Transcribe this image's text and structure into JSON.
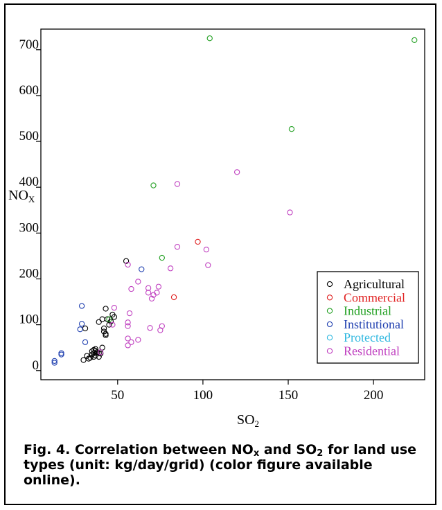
{
  "chart_data": {
    "type": "scatter",
    "xlabel": "SO",
    "xlabel_sub": "2",
    "ylabel": "NO",
    "ylabel_sub": "X",
    "xlim": [
      5,
      230
    ],
    "ylim": [
      -20,
      745
    ],
    "x_ticks": [
      {
        "value": 50,
        "label": "50"
      },
      {
        "value": 100,
        "label": "100"
      },
      {
        "value": 150,
        "label": "150"
      },
      {
        "value": 200,
        "label": "200"
      }
    ],
    "y_ticks": [
      {
        "value": 0,
        "label": "0"
      },
      {
        "value": 100,
        "label": "100"
      },
      {
        "value": 200,
        "label": "200"
      },
      {
        "value": 300,
        "label": "300"
      },
      {
        "value": 400,
        "label": "400"
      },
      {
        "value": 500,
        "label": "500"
      },
      {
        "value": 600,
        "label": "600"
      },
      {
        "value": 700,
        "label": "700"
      }
    ],
    "legend_position": "bottom-right",
    "series": [
      {
        "name": "Agricultural",
        "color": "#000000",
        "points": [
          [
            55,
            239
          ],
          [
            43,
            135
          ],
          [
            47,
            122
          ],
          [
            48,
            117
          ],
          [
            44,
            112
          ],
          [
            46,
            107
          ],
          [
            39,
            106
          ],
          [
            41,
            112
          ],
          [
            42,
            92
          ],
          [
            42,
            85
          ],
          [
            43,
            80
          ],
          [
            43,
            77
          ],
          [
            45,
            100
          ],
          [
            31,
            92
          ],
          [
            41,
            50
          ],
          [
            36,
            45
          ],
          [
            37,
            47
          ],
          [
            38,
            40
          ],
          [
            36,
            38
          ],
          [
            35,
            35
          ],
          [
            39,
            38
          ],
          [
            37,
            33
          ],
          [
            39,
            30
          ],
          [
            32,
            32
          ],
          [
            30,
            23
          ],
          [
            33,
            26
          ],
          [
            40,
            37
          ],
          [
            36,
            30
          ],
          [
            37,
            43
          ],
          [
            35,
            42
          ],
          [
            34,
            28
          ]
        ]
      },
      {
        "name": "Commercial",
        "color": "#e02020",
        "points": [
          [
            97,
            281
          ],
          [
            83,
            160
          ]
        ]
      },
      {
        "name": "Industrial",
        "color": "#22a022",
        "points": [
          [
            104,
            725
          ],
          [
            224,
            721
          ],
          [
            152,
            527
          ],
          [
            71,
            404
          ],
          [
            76,
            246
          ],
          [
            45,
            112
          ]
        ]
      },
      {
        "name": "Institutional",
        "color": "#2040b0",
        "points": [
          [
            64,
            221
          ],
          [
            29,
            141
          ],
          [
            29,
            102
          ],
          [
            28,
            90
          ],
          [
            31,
            62
          ],
          [
            17,
            38
          ],
          [
            17,
            35
          ],
          [
            13,
            21
          ],
          [
            13,
            17
          ]
        ]
      },
      {
        "name": "Protected",
        "color": "#30b8e0",
        "points": []
      },
      {
        "name": "Residential",
        "color": "#c040c0",
        "points": [
          [
            120,
            433
          ],
          [
            85,
            407
          ],
          [
            151,
            345
          ],
          [
            85,
            270
          ],
          [
            102,
            264
          ],
          [
            103,
            230
          ],
          [
            56,
            231
          ],
          [
            81,
            223
          ],
          [
            62,
            194
          ],
          [
            74,
            183
          ],
          [
            68,
            180
          ],
          [
            58,
            178
          ],
          [
            73,
            170
          ],
          [
            68,
            170
          ],
          [
            71,
            165
          ],
          [
            70,
            157
          ],
          [
            48,
            137
          ],
          [
            57,
            125
          ],
          [
            56,
            105
          ],
          [
            56,
            97
          ],
          [
            47,
            100
          ],
          [
            76,
            97
          ],
          [
            69,
            93
          ],
          [
            75,
            88
          ],
          [
            56,
            70
          ],
          [
            58,
            62
          ],
          [
            62,
            67
          ],
          [
            56,
            55
          ],
          [
            40,
            40
          ]
        ]
      }
    ]
  },
  "caption": {
    "fig_label": "Fig. 4.",
    "part1": "Correlation between NO",
    "sub1": "x",
    "part2": "and SO",
    "sub2": "2",
    "part3": "for land use types (unit: kg/day/grid) (color figure available online)."
  }
}
